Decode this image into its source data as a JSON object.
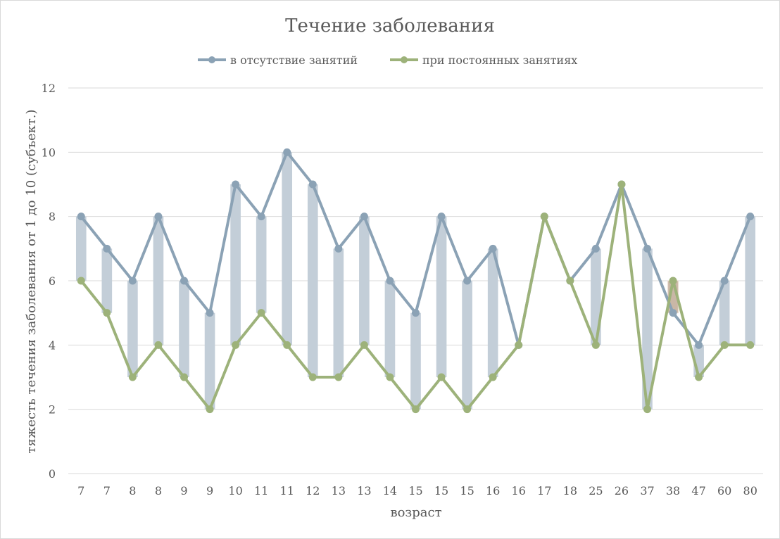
{
  "chart_data": {
    "type": "line",
    "title": "Течение заболевания",
    "xlabel": "возраст",
    "ylabel": "тяжесть течения заболевания от 1 до 10 (субъект.)",
    "ylim": [
      0,
      12
    ],
    "yticks": [
      0,
      2,
      4,
      6,
      8,
      10,
      12
    ],
    "grid": true,
    "legend_position": "top-center",
    "categories": [
      "7",
      "7",
      "8",
      "8",
      "9",
      "9",
      "10",
      "11",
      "11",
      "12",
      "13",
      "13",
      "14",
      "15",
      "15",
      "15",
      "16",
      "16",
      "17",
      "18",
      "25",
      "26",
      "37",
      "38",
      "47",
      "60",
      "80"
    ],
    "series": [
      {
        "name": "в отсутствие занятий",
        "color": "#8ba2b5",
        "values": [
          8,
          7,
          6,
          8,
          6,
          5,
          9,
          8,
          10,
          9,
          7,
          8,
          6,
          5,
          8,
          6,
          7,
          4,
          8,
          6,
          7,
          9,
          7,
          5,
          4,
          6,
          8
        ]
      },
      {
        "name": "при постоянных занятиях",
        "color": "#9db27a",
        "values": [
          6,
          5,
          3,
          4,
          3,
          2,
          4,
          5,
          4,
          3,
          3,
          4,
          3,
          2,
          3,
          2,
          3,
          4,
          8,
          6,
          4,
          9,
          2,
          6,
          3,
          4,
          4
        ]
      }
    ],
    "range_bars": {
      "color": "#c3ced8",
      "highlight_color": "#c9b7a6"
    }
  }
}
